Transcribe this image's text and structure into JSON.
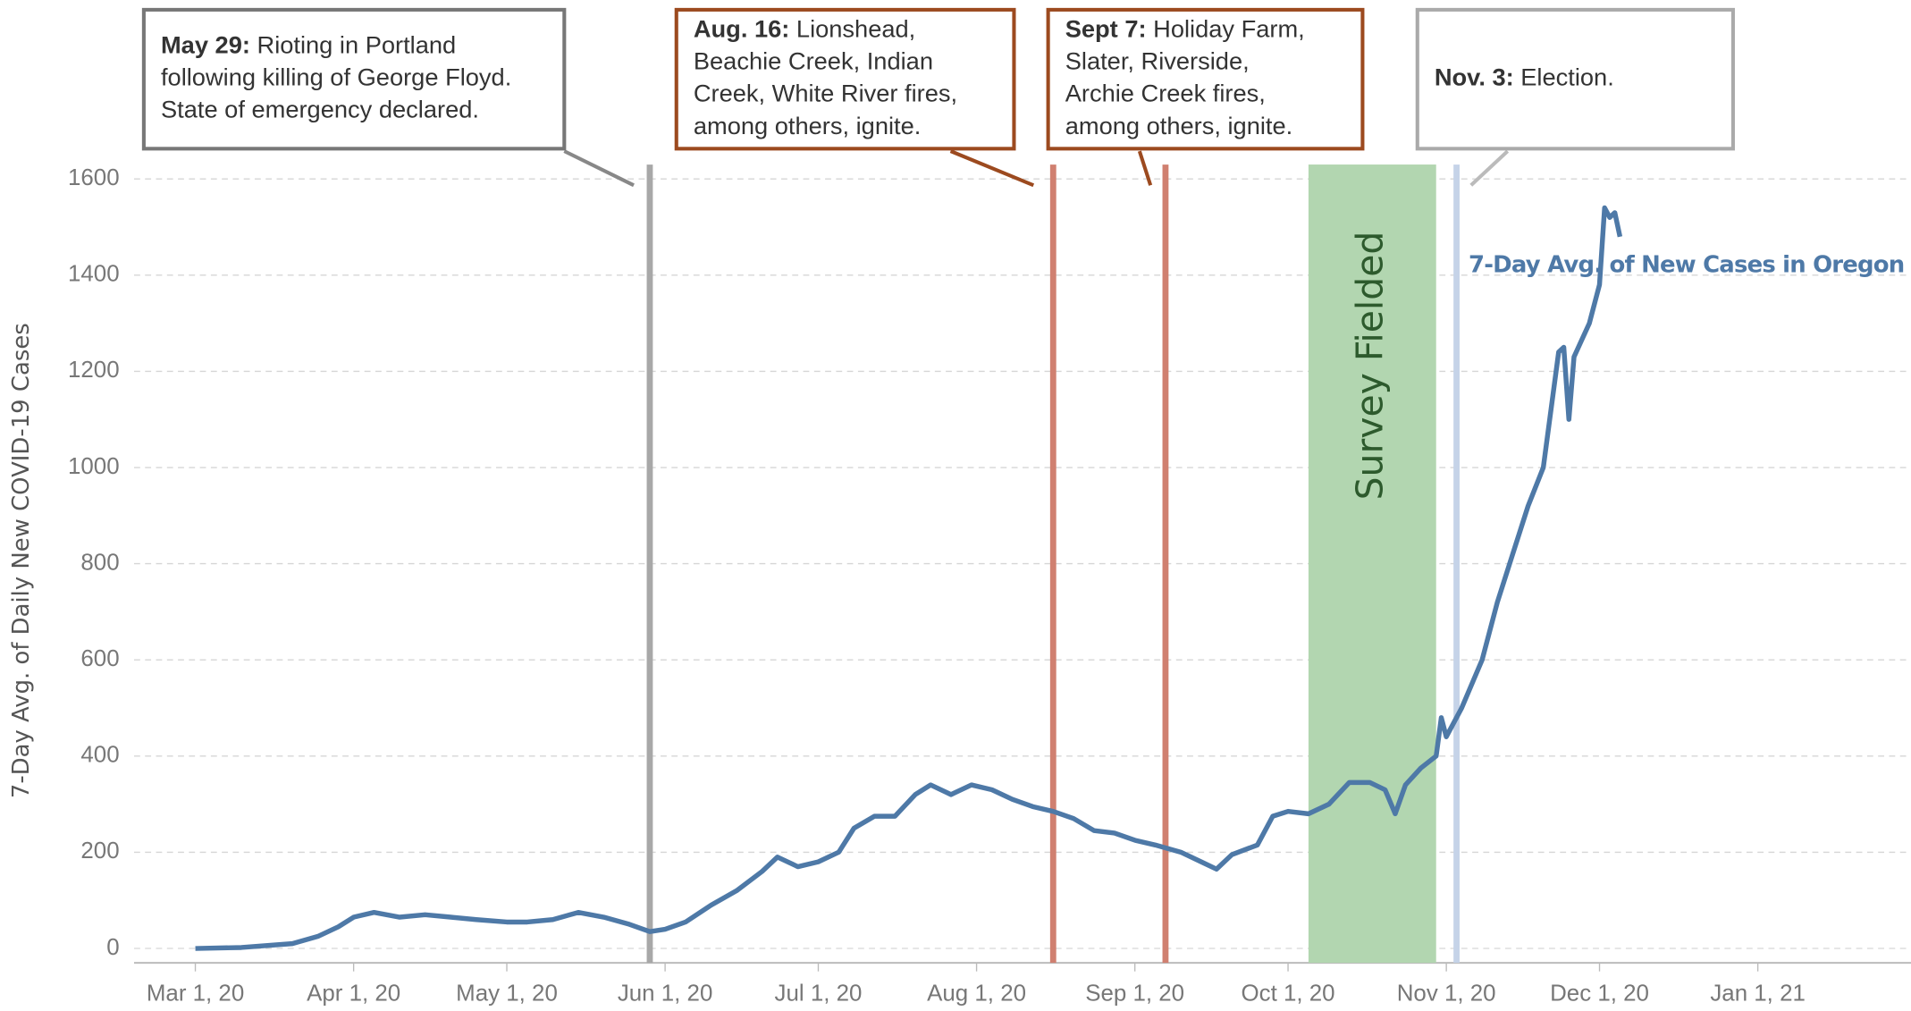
{
  "chart_data": {
    "type": "line",
    "y_label": "7-Day Avg. of Daily New COVID-19 Cases",
    "x": [
      "2020-03-01",
      "2020-03-10",
      "2020-03-20",
      "2020-03-25",
      "2020-03-29",
      "2020-04-01",
      "2020-04-05",
      "2020-04-10",
      "2020-04-15",
      "2020-04-20",
      "2020-04-25",
      "2020-05-01",
      "2020-05-05",
      "2020-05-10",
      "2020-05-15",
      "2020-05-20",
      "2020-05-25",
      "2020-05-29",
      "2020-06-01",
      "2020-06-05",
      "2020-06-10",
      "2020-06-15",
      "2020-06-20",
      "2020-06-23",
      "2020-06-27",
      "2020-07-01",
      "2020-07-05",
      "2020-07-08",
      "2020-07-12",
      "2020-07-16",
      "2020-07-20",
      "2020-07-23",
      "2020-07-27",
      "2020-07-31",
      "2020-08-04",
      "2020-08-08",
      "2020-08-12",
      "2020-08-16",
      "2020-08-20",
      "2020-08-24",
      "2020-08-28",
      "2020-09-01",
      "2020-09-05",
      "2020-09-10",
      "2020-09-14",
      "2020-09-17",
      "2020-09-20",
      "2020-09-25",
      "2020-09-28",
      "2020-10-01",
      "2020-10-05",
      "2020-10-09",
      "2020-10-13",
      "2020-10-17",
      "2020-10-20",
      "2020-10-22",
      "2020-10-24",
      "2020-10-27",
      "2020-10-30",
      "2020-10-31",
      "2020-11-01",
      "2020-11-04",
      "2020-11-08",
      "2020-11-11",
      "2020-11-14",
      "2020-11-17",
      "2020-11-20",
      "2020-11-23",
      "2020-11-24",
      "2020-11-25",
      "2020-11-26",
      "2020-11-29",
      "2020-12-01",
      "2020-12-02",
      "2020-12-03",
      "2020-12-04",
      "2020-12-05"
    ],
    "series": [
      {
        "name": "7-Day Avg. of New Cases in Oregon",
        "color": "#4e79a7",
        "values": [
          0,
          2,
          10,
          25,
          45,
          65,
          75,
          65,
          70,
          65,
          60,
          55,
          55,
          60,
          75,
          65,
          50,
          35,
          40,
          55,
          90,
          120,
          160,
          190,
          170,
          180,
          200,
          250,
          275,
          275,
          320,
          340,
          320,
          340,
          330,
          310,
          295,
          285,
          270,
          245,
          240,
          225,
          215,
          200,
          180,
          165,
          195,
          215,
          275,
          285,
          280,
          300,
          345,
          345,
          330,
          280,
          340,
          375,
          400,
          480,
          440,
          500,
          600,
          720,
          820,
          920,
          1000,
          1240,
          1250,
          1100,
          1230,
          1300,
          1380,
          1540,
          1520,
          1530,
          1480
        ]
      }
    ],
    "xlim": [
      "2020-02-18",
      "2021-01-31"
    ],
    "xticks": [
      {
        "value": "2020-03-01",
        "label": "Mar 1, 20"
      },
      {
        "value": "2020-04-01",
        "label": "Apr 1, 20"
      },
      {
        "value": "2020-05-01",
        "label": "May 1, 20"
      },
      {
        "value": "2020-06-01",
        "label": "Jun 1, 20"
      },
      {
        "value": "2020-07-01",
        "label": "Jul 1, 20"
      },
      {
        "value": "2020-08-01",
        "label": "Aug 1, 20"
      },
      {
        "value": "2020-09-01",
        "label": "Sep 1, 20"
      },
      {
        "value": "2020-10-01",
        "label": "Oct 1, 20"
      },
      {
        "value": "2020-11-01",
        "label": "Nov 1, 20"
      },
      {
        "value": "2020-12-01",
        "label": "Dec 1, 20"
      },
      {
        "value": "2021-01-01",
        "label": "Jan 1, 21"
      }
    ],
    "ylim": [
      -30,
      1630
    ],
    "yticks": [
      0,
      200,
      400,
      600,
      800,
      1000,
      1200,
      1400,
      1600
    ],
    "grid": true,
    "band": {
      "start": "2020-10-05",
      "end": "2020-10-30",
      "label": "Survey Fielded",
      "color": "#b2d6b0"
    },
    "annotations": [
      {
        "date": "2020-05-29",
        "color": "#a8a8a8",
        "border": "#777777",
        "bold": "May 29:",
        "lines": [
          " Rioting in Portland",
          "following killing of George Floyd.",
          "State of emergency declared."
        ]
      },
      {
        "date": "2020-08-16",
        "color": "#d08070",
        "border": "#9c4a1f",
        "bold": "Aug. 16:",
        "lines": [
          " Lionshead,",
          "Beachie Creek, Indian",
          "Creek, White River fires,",
          "among others, ignite."
        ]
      },
      {
        "date": "2020-09-07",
        "color": "#d08070",
        "border": "#9c4a1f",
        "bold": "Sept 7:",
        "lines": [
          " Holiday Farm,",
          "Slater, Riverside,",
          "Archie Creek fires,",
          "among others, ignite."
        ]
      },
      {
        "date": "2020-11-03",
        "color": "#c5d3e8",
        "border": "#aaaaaa",
        "bold": "Nov. 3:",
        "lines": [
          " Election."
        ]
      }
    ]
  }
}
